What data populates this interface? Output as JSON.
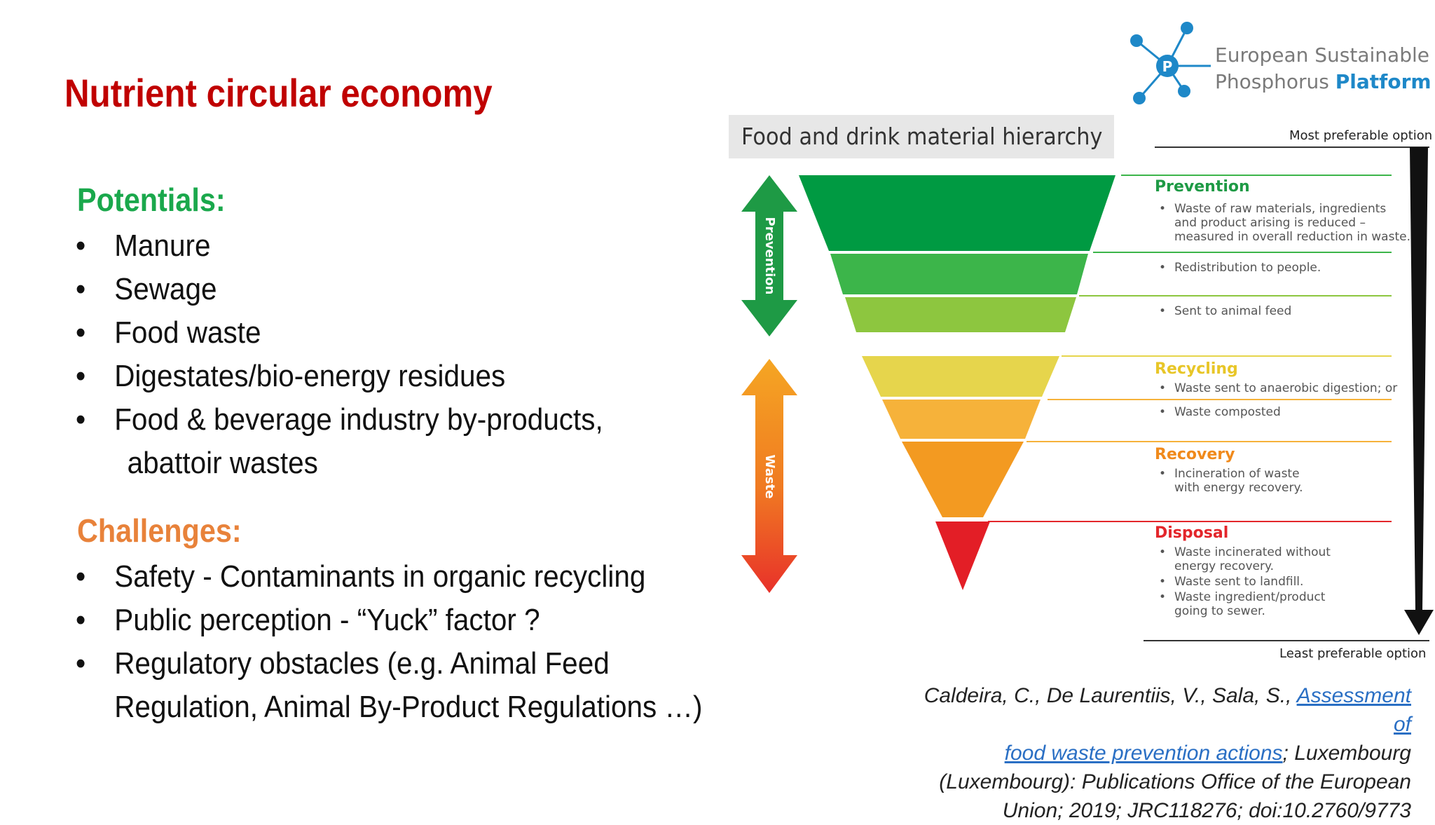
{
  "slide": {
    "title": "Nutrient circular economy",
    "potentials": {
      "heading": "Potentials:",
      "items": [
        "Manure",
        "Sewage",
        "Food waste",
        "Digestates/bio-energy residues",
        "Food & beverage industry by-products,",
        "abattoir wastes"
      ]
    },
    "challenges": {
      "heading": "Challenges:",
      "items": [
        "Safety - Contaminants in organic recycling",
        "Public perception - “Yuck” factor ?",
        "Regulatory obstacles (e.g. Animal Feed",
        "Regulation, Animal By-Product Regulations …)"
      ]
    },
    "bullet_char": "•"
  },
  "logo": {
    "line1": "European Sustainable",
    "line2_part1": "Phosphorus ",
    "line2_part2": "Platform",
    "icon_letter": "P",
    "color": "#1e88c8"
  },
  "diagram": {
    "title": "Food and drink material hierarchy",
    "most_preferable": "Most preferable option",
    "least_preferable": "Least preferable option",
    "arrow_prevention": "Prevention",
    "arrow_waste": "Waste",
    "sections": {
      "prevention": "Prevention",
      "recycling": "Recycling",
      "recovery": "Recovery",
      "disposal": "Disposal"
    },
    "items": {
      "p1": [
        "Waste of raw materials, ingredients",
        "and product arising is reduced –",
        "measured in overall reduction in waste."
      ],
      "p2": "Redistribution to people.",
      "p3": "Sent to animal feed",
      "r1": "Waste sent to anaerobic digestion; or",
      "r2": "Waste composted",
      "rc1": [
        "Incineration of waste",
        "with energy recovery."
      ],
      "d1": [
        "Waste incinerated without",
        "energy recovery."
      ],
      "d2": "Waste sent to landfill.",
      "d3": [
        "Waste ingredient/product",
        "going to sewer."
      ]
    },
    "colors": {
      "prevention": "#1e9a45",
      "recycling": "#e8c628",
      "recovery": "#f08a1c",
      "disposal": "#e3262b"
    }
  },
  "citation": {
    "authors": "Caldeira, C., De Laurentiis, V., Sala, S., ",
    "link_text1": "Assessment of",
    "link_text2": "food waste prevention actions",
    "rest1": "; Luxembourg",
    "rest2": "(Luxembourg): Publications Office of the European",
    "rest3": "Union; 2019; JRC118276; doi:10.2760/9773"
  }
}
